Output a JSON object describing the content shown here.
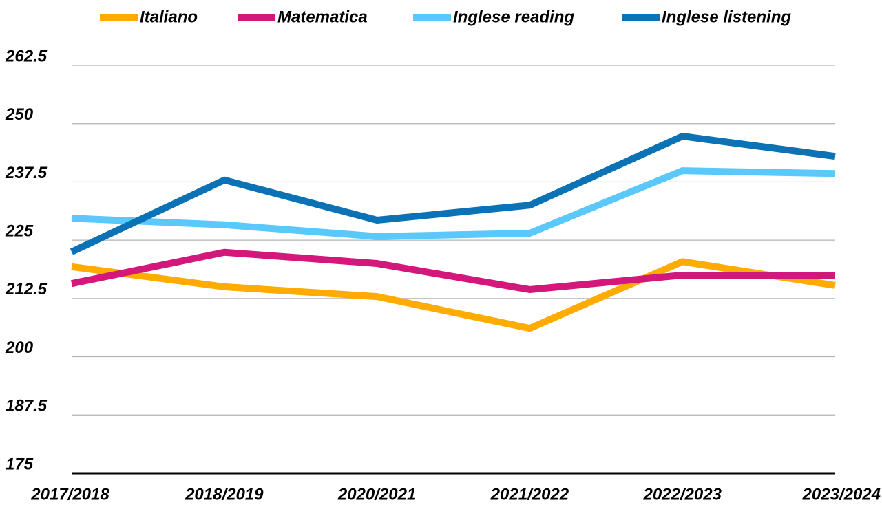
{
  "chart_data": {
    "type": "line",
    "categories": [
      "2017/2018",
      "2018/2019",
      "2020/2021",
      "2021/2022",
      "2022/2023",
      "2023/2024"
    ],
    "series": [
      {
        "name": "Italiano",
        "color": "#ffab00",
        "values": [
          219.3,
          215.0,
          212.9,
          206.1,
          220.4,
          215.3
        ]
      },
      {
        "name": "Matematica",
        "color": "#d4177a",
        "values": [
          215.7,
          222.4,
          220.0,
          214.4,
          217.5,
          217.5
        ]
      },
      {
        "name": "Inglese reading",
        "color": "#5ac8fa",
        "values": [
          229.7,
          228.3,
          225.8,
          226.5,
          239.9,
          239.3
        ]
      },
      {
        "name": "Inglese listening",
        "color": "#0a72b5",
        "values": [
          222.5,
          237.9,
          229.3,
          232.5,
          247.3,
          243.0
        ]
      }
    ],
    "ylim": [
      175,
      262.5
    ],
    "yticks": [
      175,
      187.5,
      200,
      212.5,
      225,
      237.5,
      250,
      262.5
    ],
    "grid": true,
    "legend": "top"
  }
}
